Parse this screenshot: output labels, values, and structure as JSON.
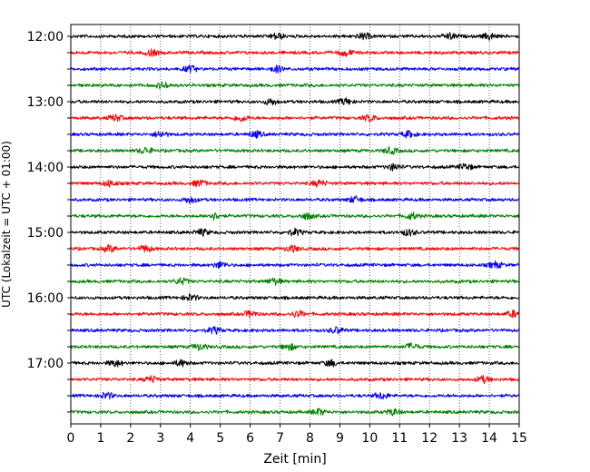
{
  "chart_data": {
    "type": "line",
    "title": "",
    "xlabel": "Zeit  [min]",
    "ylabel": "UTC (Lokalzeit = UTC + 01:00)",
    "xlim": [
      0,
      15
    ],
    "x_ticks": [
      0,
      1,
      2,
      3,
      4,
      5,
      6,
      7,
      8,
      9,
      10,
      11,
      12,
      13,
      14,
      15
    ],
    "x_tick_labels": [
      "0",
      "1",
      "2",
      "3",
      "4",
      "5",
      "6",
      "7",
      "8",
      "9",
      "10",
      "11",
      "12",
      "13",
      "14",
      "15"
    ],
    "y_tick_labels": [
      "12:00",
      "13:00",
      "14:00",
      "15:00",
      "16:00",
      "17:00"
    ],
    "grid": "vertical dotted",
    "trace_colors": [
      "#000000",
      "#ff0000",
      "#0000ff",
      "#008000"
    ],
    "traces": [
      {
        "start": "12:00",
        "color": "#000000",
        "bursts_min": [
          6.9,
          9.8,
          12.7,
          14.0
        ]
      },
      {
        "start": "12:15",
        "color": "#ff0000",
        "bursts_min": [
          2.7,
          9.2
        ]
      },
      {
        "start": "12:30",
        "color": "#0000ff",
        "bursts_min": [
          4.0,
          6.9
        ]
      },
      {
        "start": "12:45",
        "color": "#008000",
        "bursts_min": [
          3.1
        ]
      },
      {
        "start": "13:00",
        "color": "#000000",
        "bursts_min": [
          6.7,
          9.2
        ]
      },
      {
        "start": "13:15",
        "color": "#ff0000",
        "bursts_min": [
          1.5,
          5.7,
          10.0
        ]
      },
      {
        "start": "13:30",
        "color": "#0000ff",
        "bursts_min": [
          3.0,
          6.2,
          11.3
        ]
      },
      {
        "start": "13:45",
        "color": "#008000",
        "bursts_min": [
          2.5,
          10.7
        ]
      },
      {
        "start": "14:00",
        "color": "#000000",
        "bursts_min": [
          10.8,
          13.2
        ]
      },
      {
        "start": "14:15",
        "color": "#ff0000",
        "bursts_min": [
          1.3,
          4.3,
          8.3
        ]
      },
      {
        "start": "14:30",
        "color": "#0000ff",
        "bursts_min": [
          4.0,
          9.5
        ]
      },
      {
        "start": "14:45",
        "color": "#008000",
        "bursts_min": [
          4.8,
          7.9,
          11.4
        ]
      },
      {
        "start": "15:00",
        "color": "#000000",
        "bursts_min": [
          4.4,
          7.5,
          11.3
        ]
      },
      {
        "start": "15:15",
        "color": "#ff0000",
        "bursts_min": [
          1.3,
          2.5,
          7.4
        ]
      },
      {
        "start": "15:30",
        "color": "#0000ff",
        "bursts_min": [
          5.0,
          14.2
        ]
      },
      {
        "start": "15:45",
        "color": "#008000",
        "bursts_min": [
          3.7,
          6.8
        ]
      },
      {
        "start": "16:00",
        "color": "#000000",
        "bursts_min": [
          4.0
        ]
      },
      {
        "start": "16:15",
        "color": "#ff0000",
        "bursts_min": [
          6.0,
          7.6,
          14.8
        ]
      },
      {
        "start": "16:30",
        "color": "#0000ff",
        "bursts_min": [
          4.8,
          8.9
        ]
      },
      {
        "start": "16:45",
        "color": "#008000",
        "bursts_min": [
          4.3,
          7.3,
          11.4
        ]
      },
      {
        "start": "17:00",
        "color": "#000000",
        "bursts_min": [
          1.5,
          3.7,
          8.7
        ]
      },
      {
        "start": "17:15",
        "color": "#ff0000",
        "bursts_min": [
          2.7,
          13.8
        ]
      },
      {
        "start": "17:30",
        "color": "#0000ff",
        "bursts_min": [
          1.2,
          10.4
        ]
      },
      {
        "start": "17:45",
        "color": "#008000",
        "bursts_min": [
          8.3,
          10.8
        ]
      }
    ]
  }
}
